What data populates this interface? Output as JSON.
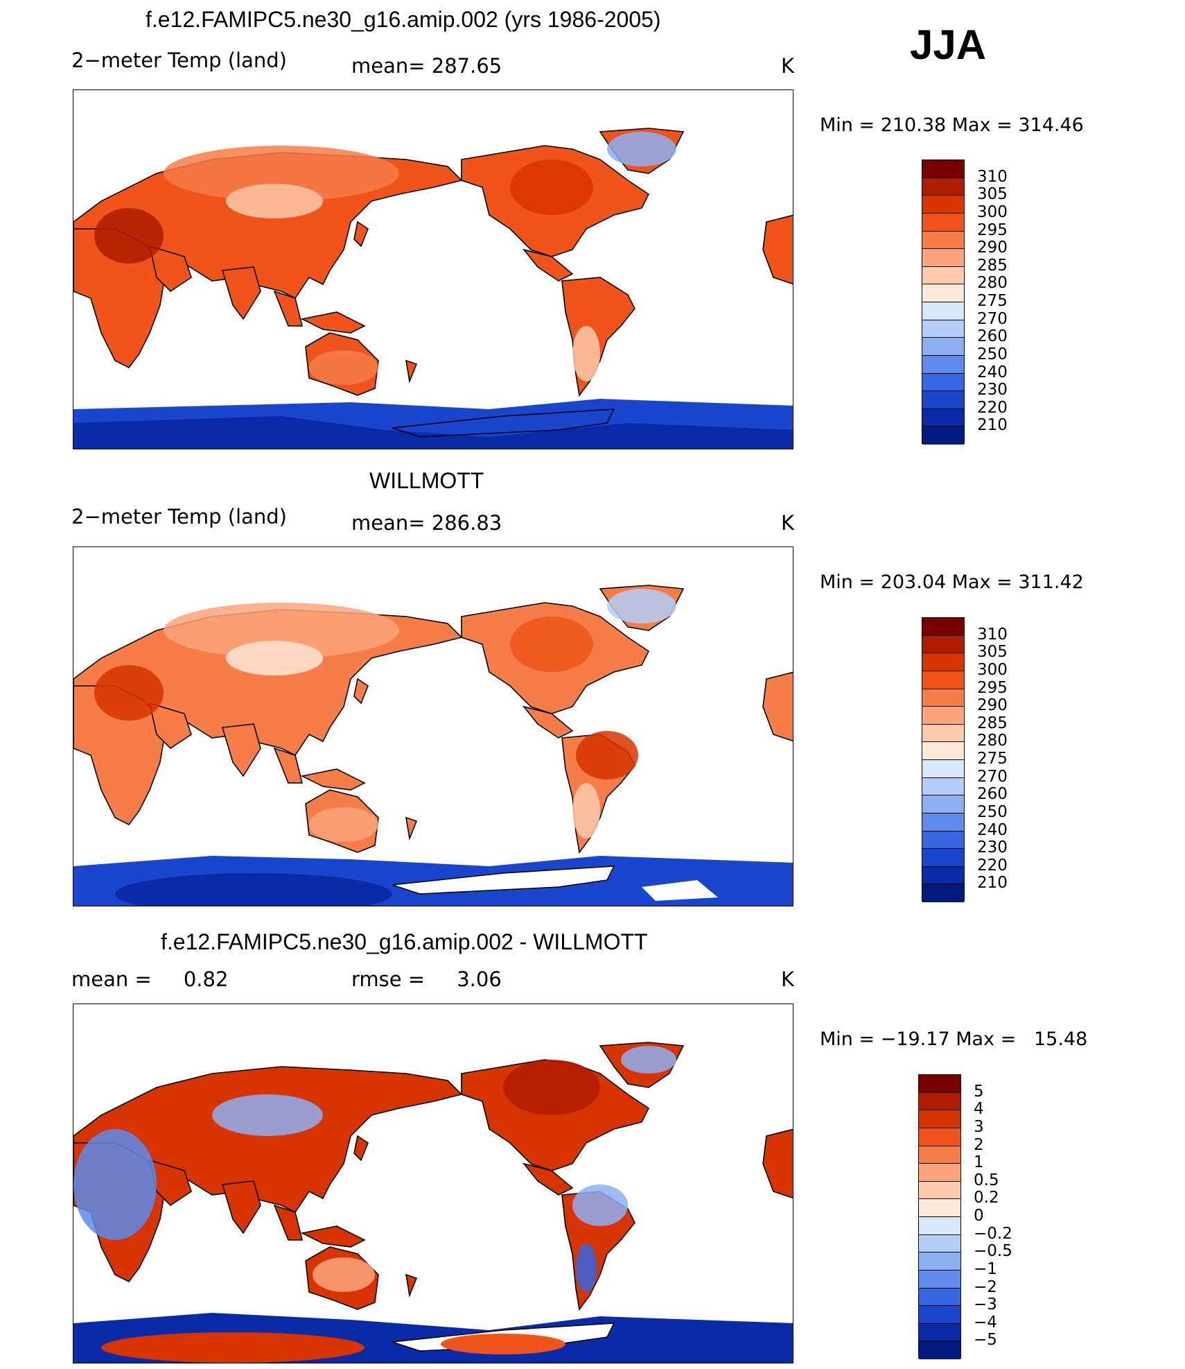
{
  "season": "JJA",
  "panels": [
    {
      "title": "f.e12.FAMIPC5.ne30_g16.amip.002 (yrs 1986-2005)",
      "left_label": "2−meter Temp (land)",
      "mid_label": "mean= 287.65",
      "units": "K",
      "minmax": "Min = 210.38 Max = 314.46",
      "colorbar": {
        "levels": [
          "310",
          "305",
          "300",
          "295",
          "290",
          "285",
          "280",
          "275",
          "270",
          "260",
          "250",
          "240",
          "230",
          "220",
          "210"
        ],
        "colors": [
          "#7a0000",
          "#b01c00",
          "#d83400",
          "#f0541b",
          "#f77d48",
          "#fba47b",
          "#fdcaad",
          "#fee9d8",
          "#d8e8fb",
          "#b4cdf8",
          "#8daff3",
          "#5e8bec",
          "#3566e2",
          "#1a45cd",
          "#0a2ba8",
          "#001a7e"
        ]
      }
    },
    {
      "title": "WILLMOTT",
      "left_label": "2−meter Temp (land)",
      "mid_label": "mean= 286.83",
      "units": "K",
      "minmax": "Min = 203.04 Max = 311.42",
      "colorbar": {
        "levels": [
          "310",
          "305",
          "300",
          "295",
          "290",
          "285",
          "280",
          "275",
          "270",
          "260",
          "250",
          "240",
          "230",
          "220",
          "210"
        ],
        "colors": [
          "#7a0000",
          "#b01c00",
          "#d83400",
          "#f0541b",
          "#f77d48",
          "#fba47b",
          "#fdcaad",
          "#fee9d8",
          "#d8e8fb",
          "#b4cdf8",
          "#8daff3",
          "#5e8bec",
          "#3566e2",
          "#1a45cd",
          "#0a2ba8",
          "#001a7e"
        ]
      }
    },
    {
      "title": "f.e12.FAMIPC5.ne30_g16.amip.002 - WILLMOTT",
      "left_label": "mean =     0.82",
      "mid_label": "rmse =     3.06",
      "units": "K",
      "minmax": "Min = −19.17 Max =   15.48",
      "colorbar": {
        "levels": [
          "5",
          "4",
          "3",
          "2",
          "1",
          "0.5",
          "0.2",
          "0",
          "−0.2",
          "−0.5",
          "−1",
          "−2",
          "−3",
          "−4",
          "−5"
        ],
        "colors": [
          "#7a0000",
          "#b01c00",
          "#d83400",
          "#f0541b",
          "#f77d48",
          "#fba47b",
          "#fdcaad",
          "#fee9d8",
          "#d8e8fb",
          "#b4cdf8",
          "#8daff3",
          "#5e8bec",
          "#3566e2",
          "#1a45cd",
          "#0a2ba8",
          "#001a7e"
        ]
      }
    }
  ]
}
